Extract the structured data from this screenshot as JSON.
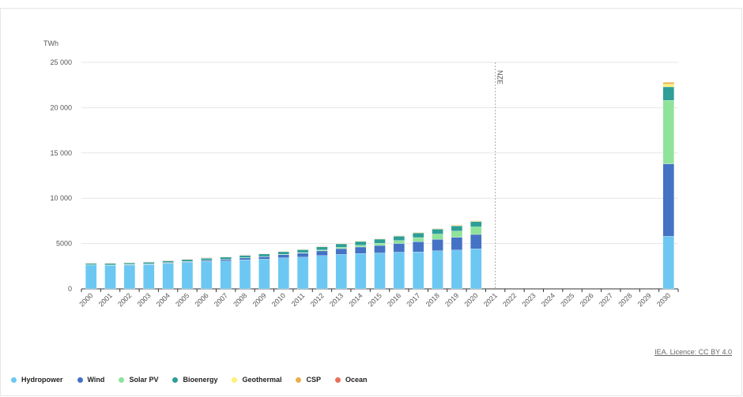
{
  "chart_data": {
    "type": "bar",
    "stacked": true,
    "ylabel": "TWh",
    "ylim": [
      0,
      25000
    ],
    "yticks": [
      0,
      5000,
      10000,
      15000,
      20000,
      25000
    ],
    "ytick_labels": [
      "0",
      "5000",
      "10 000",
      "15 000",
      "20 000",
      "25 000"
    ],
    "categories": [
      "2000",
      "2001",
      "2002",
      "2003",
      "2004",
      "2005",
      "2006",
      "2007",
      "2008",
      "2009",
      "2010",
      "2011",
      "2012",
      "2013",
      "2014",
      "2015",
      "2016",
      "2017",
      "2018",
      "2019",
      "2020",
      "2021",
      "2022",
      "2023",
      "2024",
      "2025",
      "2026",
      "2027",
      "2028",
      "2029",
      "2030"
    ],
    "annotation": {
      "label": "NZE",
      "x": "2021"
    },
    "series": [
      {
        "name": "Hydropower",
        "color": "#6cc8f2",
        "values": [
          2630,
          2600,
          2650,
          2700,
          2810,
          2920,
          3030,
          3080,
          3210,
          3280,
          3430,
          3500,
          3670,
          3800,
          3900,
          3960,
          4050,
          4080,
          4200,
          4280,
          4420,
          null,
          null,
          null,
          null,
          null,
          null,
          null,
          null,
          null,
          5800
        ]
      },
      {
        "name": "Wind",
        "color": "#4472c4",
        "values": [
          30,
          40,
          50,
          65,
          85,
          100,
          130,
          170,
          220,
          275,
          340,
          440,
          520,
          640,
          720,
          830,
          960,
          1130,
          1270,
          1420,
          1590,
          null,
          null,
          null,
          null,
          null,
          null,
          null,
          null,
          null,
          8000
        ]
      },
      {
        "name": "Solar PV",
        "color": "#8fe39a",
        "values": [
          1,
          2,
          2,
          3,
          4,
          5,
          6,
          8,
          12,
          20,
          30,
          60,
          100,
          140,
          190,
          250,
          330,
          450,
          580,
          680,
          830,
          null,
          null,
          null,
          null,
          null,
          null,
          null,
          null,
          null,
          7000
        ]
      },
      {
        "name": "Bioenergy",
        "color": "#2e9e96",
        "values": [
          150,
          155,
          165,
          175,
          190,
          205,
          220,
          240,
          255,
          275,
          300,
          320,
          360,
          390,
          420,
          450,
          480,
          520,
          550,
          580,
          600,
          null,
          null,
          null,
          null,
          null,
          null,
          null,
          null,
          null,
          1500
        ]
      },
      {
        "name": "Geothermal",
        "color": "#fff176",
        "values": [
          50,
          51,
          52,
          53,
          55,
          57,
          58,
          60,
          62,
          64,
          66,
          68,
          69,
          70,
          72,
          75,
          78,
          80,
          85,
          88,
          92,
          null,
          null,
          null,
          null,
          null,
          null,
          null,
          null,
          null,
          300
        ]
      },
      {
        "name": "CSP",
        "color": "#e8b04a",
        "values": [
          1,
          1,
          1,
          1,
          1,
          1,
          1,
          1,
          2,
          2,
          2,
          3,
          5,
          8,
          10,
          10,
          11,
          12,
          12,
          13,
          14,
          null,
          null,
          null,
          null,
          null,
          null,
          null,
          null,
          null,
          200
        ]
      },
      {
        "name": "Ocean",
        "color": "#e8705a",
        "values": [
          1,
          1,
          1,
          1,
          1,
          1,
          1,
          1,
          1,
          1,
          1,
          1,
          1,
          1,
          1,
          1,
          1,
          1,
          1,
          1,
          1,
          null,
          null,
          null,
          null,
          null,
          null,
          null,
          null,
          null,
          20
        ]
      }
    ]
  },
  "credit": "IEA. Licence: CC BY 4.0"
}
